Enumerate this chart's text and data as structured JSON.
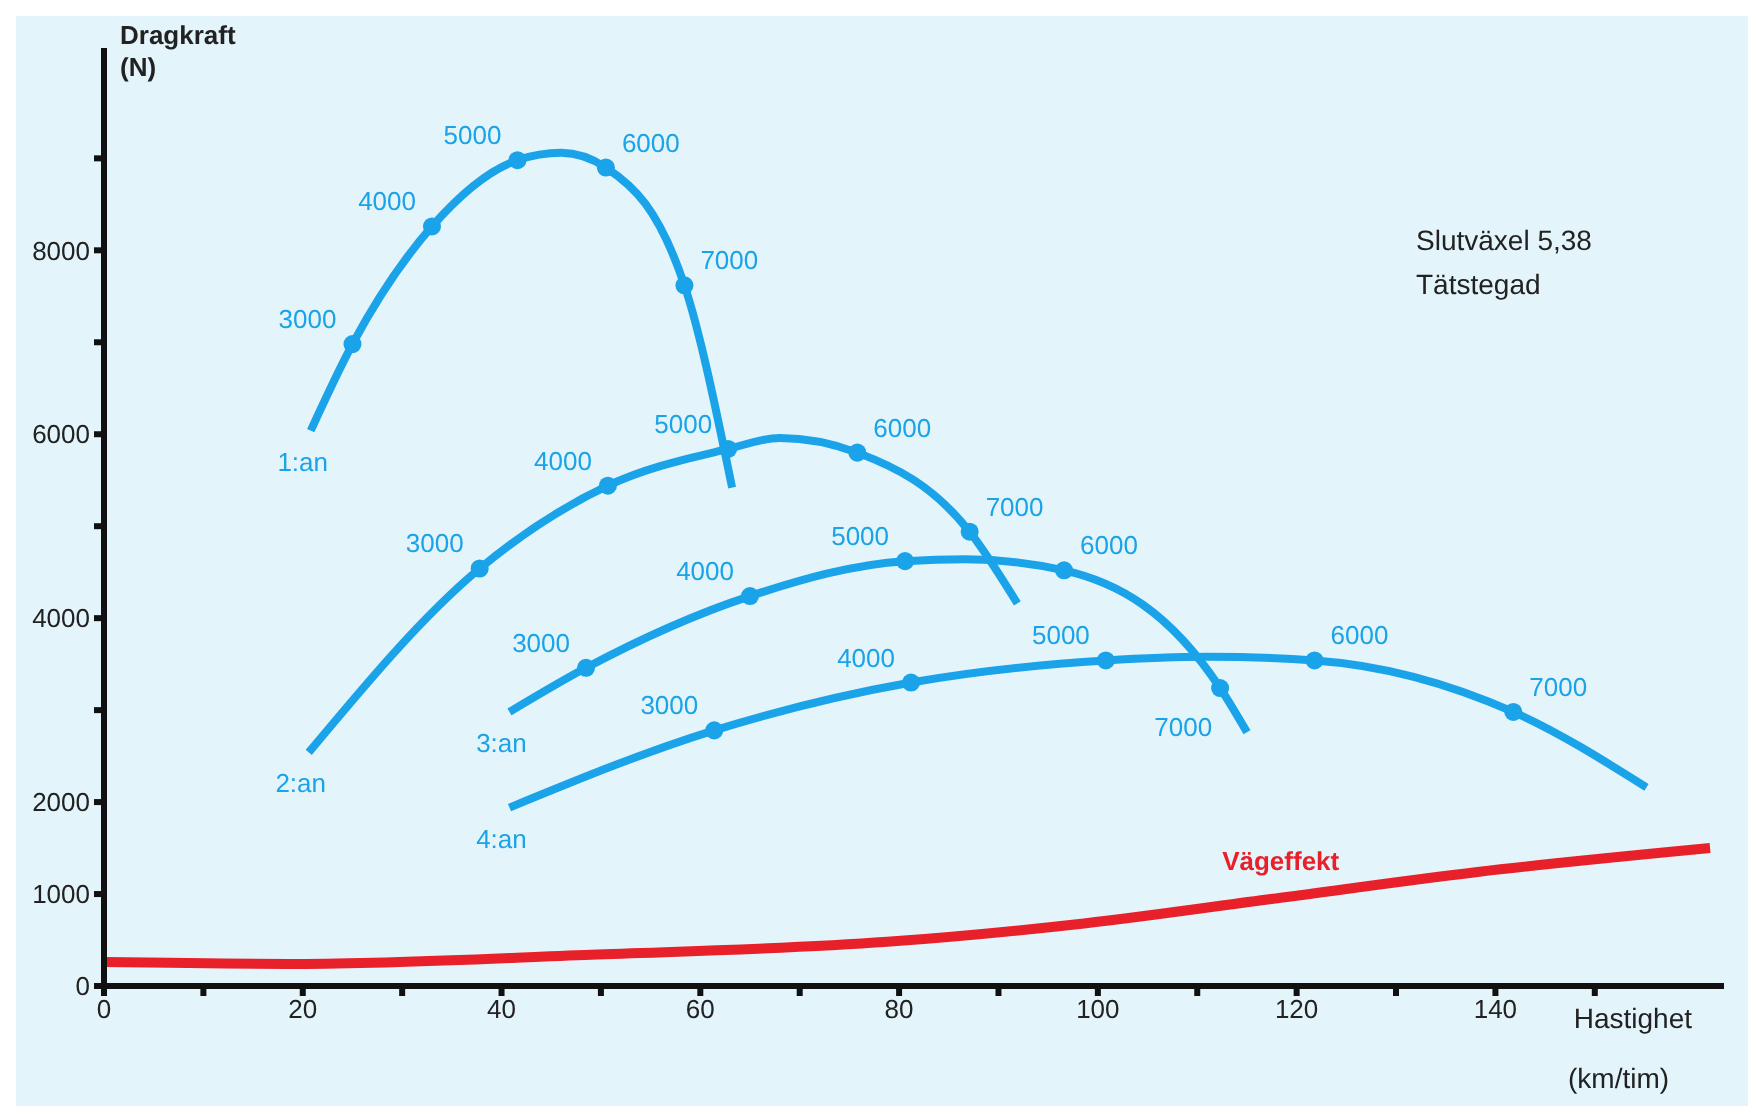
{
  "chart_data": {
    "type": "line",
    "xlabel": "Hastighet",
    "ylabel": "Dragkraft (N)",
    "xlim": [
      0,
      163
    ],
    "ylim": [
      0,
      10200
    ],
    "xticks": [
      0,
      {
        "value": 10,
        "label": null
      },
      20,
      {
        "value": 30,
        "label": null
      },
      40,
      {
        "value": 50,
        "label": null
      },
      60,
      {
        "value": 70,
        "label": null
      },
      80,
      {
        "value": 90,
        "label": null
      },
      100,
      {
        "value": 110,
        "label": null
      },
      120,
      {
        "value": 130,
        "label": null
      },
      140,
      {
        "value": 150,
        "label": null
      }
    ],
    "yticks": [
      0,
      1000,
      2000,
      {
        "value": 3000,
        "label": null
      },
      4000,
      {
        "value": 5000,
        "label": null
      },
      6000,
      {
        "value": 7000,
        "label": null
      },
      8000,
      {
        "value": 9000,
        "label": null
      }
    ],
    "grid": false,
    "legend": false,
    "line_style": "solid",
    "series": [
      {
        "name": "1:an",
        "color": "#1aa3e8",
        "x": [
          20.8,
          25,
          33,
          41.6,
          46,
          50.5,
          58.4,
          63.2
        ],
        "values": [
          6040,
          6980,
          8260,
          8980,
          9060,
          8900,
          7620,
          5420
        ]
      },
      {
        "name": "2:an",
        "color": "#1aa3e8",
        "x": [
          20.6,
          37.8,
          50.7,
          62.8,
          68,
          75.8,
          87.1,
          91.9
        ],
        "values": [
          2540,
          4540,
          5440,
          5840,
          5960,
          5800,
          4940,
          4160
        ]
      },
      {
        "name": "3:an",
        "color": "#1aa3e8",
        "x": [
          40.8,
          48.5,
          65,
          80.6,
          86.7,
          96.6,
          112.3,
          115
        ],
        "values": [
          2980,
          3460,
          4240,
          4620,
          4640,
          4520,
          3240,
          2760
        ]
      },
      {
        "name": "4:an",
        "color": "#1aa3e8",
        "x": [
          40.8,
          61.4,
          81.2,
          100.8,
          111,
          121.8,
          141.8,
          155.2
        ],
        "values": [
          1940,
          2780,
          3300,
          3540,
          3580,
          3540,
          2980,
          2160
        ]
      },
      {
        "name": "Vägeffekt",
        "color": "#e8202a",
        "x": [
          0,
          19.4,
          49,
          78.8,
          98.6,
          118.4,
          138.2,
          161.6
        ],
        "values": [
          260,
          240,
          340,
          480,
          680,
          960,
          1240,
          1500
        ]
      },
      {
        "type": "scatter",
        "marker": "circle",
        "color": "#1aa3e8",
        "x": [
          25,
          33,
          41.6,
          50.5,
          58.4,
          37.8,
          50.7,
          62.8,
          75.8,
          87.1,
          48.5,
          65,
          80.6,
          96.6,
          112.3,
          61.4,
          81.2,
          100.8,
          121.8,
          141.8
        ],
        "values": [
          6980,
          8260,
          8980,
          8900,
          7620,
          4540,
          5440,
          5840,
          5800,
          4940,
          3460,
          4240,
          4620,
          4520,
          3240,
          2780,
          3300,
          3540,
          3540,
          2980
        ]
      }
    ],
    "annotations": [
      "Slutväxel 5,38",
      "Tätstegad",
      "(km/tim)",
      {
        "text": "3000",
        "x": 25,
        "y": 6980
      },
      {
        "text": "4000",
        "x": 33,
        "y": 8260
      },
      {
        "text": "5000",
        "x": 41.6,
        "y": 8980
      },
      {
        "text": "6000",
        "x": 50.5,
        "y": 8900
      },
      {
        "text": "7000",
        "x": 58.4,
        "y": 7620
      },
      {
        "text": "3000",
        "x": 37.8,
        "y": 4540
      },
      {
        "text": "4000",
        "x": 50.7,
        "y": 5440
      },
      {
        "text": "5000",
        "x": 62.8,
        "y": 5840
      },
      {
        "text": "6000",
        "x": 75.8,
        "y": 5800
      },
      {
        "text": "7000",
        "x": 87.1,
        "y": 4940
      },
      {
        "text": "3000",
        "x": 48.5,
        "y": 3460
      },
      {
        "text": "4000",
        "x": 65,
        "y": 4240
      },
      {
        "text": "5000",
        "x": 80.6,
        "y": 4620
      },
      {
        "text": "6000",
        "x": 96.6,
        "y": 4520
      },
      {
        "text": "7000",
        "x": 112.3,
        "y": 3240
      },
      {
        "text": "3000",
        "x": 61.4,
        "y": 2780
      },
      {
        "text": "4000",
        "x": 81.2,
        "y": 3300
      },
      {
        "text": "5000",
        "x": 100.8,
        "y": 3540
      },
      {
        "text": "6000",
        "x": 121.8,
        "y": 3540
      },
      {
        "text": "7000",
        "x": 141.8,
        "y": 2980
      }
    ]
  }
}
